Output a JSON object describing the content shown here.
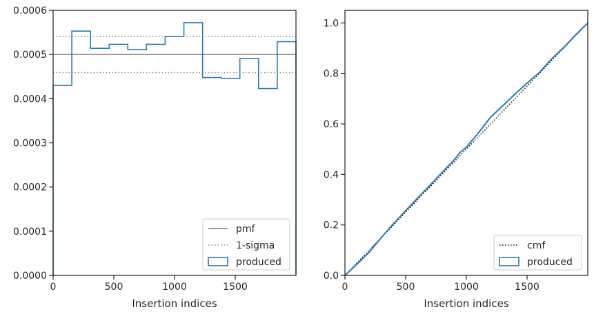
{
  "colors": {
    "produced": "#2a7bb0",
    "pmf": "#808080",
    "sigma": "#808080",
    "cmf": "#000000",
    "axes": "#262626"
  },
  "chart_data": [
    {
      "type": "line",
      "subtype": "step-histogram",
      "xlabel": "Insertion indices",
      "ylabel": "",
      "xlim": [
        0,
        2000
      ],
      "ylim": [
        0,
        0.0006
      ],
      "x_ticks": [
        "0",
        "500",
        "1000",
        "1500"
      ],
      "x_tick_values": [
        0,
        500,
        1000,
        1500
      ],
      "y_ticks": [
        "0.0000",
        "0.0001",
        "0.0002",
        "0.0003",
        "0.0004",
        "0.0005",
        "0.0006"
      ],
      "y_tick_values": [
        0,
        0.0001,
        0.0002,
        0.0003,
        0.0004,
        0.0005,
        0.0006
      ],
      "grid": false,
      "legend_position": "lower-right",
      "reference_lines": [
        {
          "name": "pmf",
          "y": 0.0005,
          "style": "solid"
        },
        {
          "name": "1-sigma",
          "y": [
            0.000459,
            0.000541
          ],
          "style": "dotted"
        }
      ],
      "series": [
        {
          "name": "produced",
          "bin_edges": [
            0,
            154,
            308,
            462,
            615,
            769,
            923,
            1077,
            1231,
            1385,
            1538,
            1692,
            1846,
            2000
          ],
          "values": [
            0.00043,
            0.000553,
            0.000514,
            0.000523,
            0.000511,
            0.000523,
            0.000541,
            0.000572,
            0.000448,
            0.000446,
            0.000491,
            0.000423,
            0.000529
          ]
        }
      ],
      "legend": [
        "pmf",
        "1-sigma",
        "produced"
      ]
    },
    {
      "type": "line",
      "xlabel": "Insertion indices",
      "ylabel": "",
      "xlim": [
        0,
        2000
      ],
      "ylim": [
        0,
        1.05
      ],
      "x_ticks": [
        "0",
        "500",
        "1000",
        "1500"
      ],
      "x_tick_values": [
        0,
        500,
        1000,
        1500
      ],
      "y_ticks": [
        "0.0",
        "0.2",
        "0.4",
        "0.6",
        "0.8",
        "1.0"
      ],
      "y_tick_values": [
        0,
        0.2,
        0.4,
        0.6,
        0.8,
        1.0
      ],
      "grid": false,
      "legend_position": "lower-right",
      "series": [
        {
          "name": "cmf",
          "style": "dotted",
          "x": [
            0,
            2000
          ],
          "y": [
            0,
            1
          ]
        },
        {
          "name": "produced",
          "style": "solid",
          "x": [
            0,
            100,
            200,
            300,
            400,
            500,
            600,
            700,
            800,
            900,
            950,
            1000,
            1100,
            1200,
            1300,
            1400,
            1500,
            1600,
            1700,
            1800,
            1900,
            2000
          ],
          "y": [
            0,
            0.045,
            0.092,
            0.15,
            0.205,
            0.257,
            0.307,
            0.357,
            0.408,
            0.458,
            0.488,
            0.508,
            0.565,
            0.627,
            0.672,
            0.718,
            0.762,
            0.803,
            0.857,
            0.902,
            0.953,
            1.0
          ]
        }
      ],
      "legend": [
        "cmf",
        "produced"
      ]
    }
  ]
}
